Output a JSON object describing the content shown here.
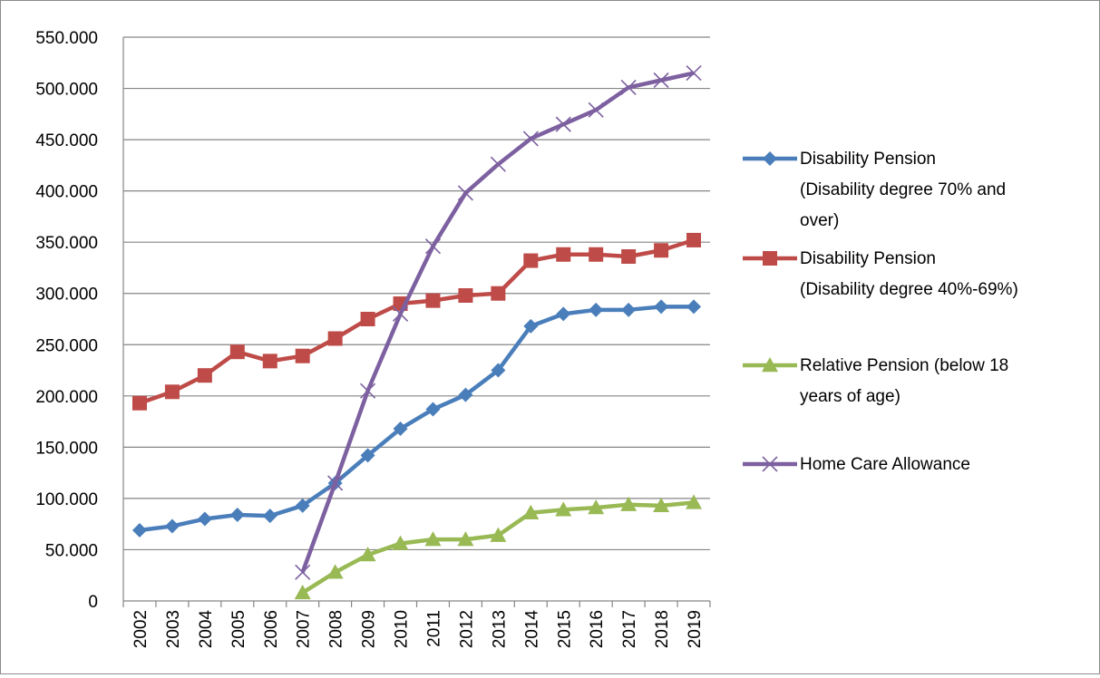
{
  "chart_data": {
    "type": "line",
    "categories": [
      "2002",
      "2003",
      "2004",
      "2005",
      "2006",
      "2007",
      "2008",
      "2009",
      "2010",
      "2011",
      "2012",
      "2013",
      "2014",
      "2015",
      "2016",
      "2017",
      "2018",
      "2019"
    ],
    "y_ticks": [
      "0",
      "50.000",
      "100.000",
      "150.000",
      "200.000",
      "250.000",
      "300.000",
      "350.000",
      "400.000",
      "450.000",
      "500.000",
      "550.000"
    ],
    "ylim": [
      0,
      550000
    ],
    "grid": "horizontal",
    "legend_position": "right",
    "series": [
      {
        "name_lines": [
          "Disability Pension",
          "(Disability degree 70% and",
          "over)"
        ],
        "color": "#4a7ebb",
        "marker": "diamond",
        "values": [
          69000,
          73000,
          80000,
          84000,
          83000,
          93000,
          115000,
          142000,
          168000,
          187000,
          201000,
          225000,
          268000,
          280000,
          284000,
          284000,
          287000,
          287000
        ]
      },
      {
        "name_lines": [
          "Disability Pension",
          "(Disability degree 40%-69%)"
        ],
        "color": "#be4b48",
        "marker": "square",
        "values": [
          193000,
          204000,
          220000,
          243000,
          234000,
          239000,
          256000,
          275000,
          290000,
          293000,
          298000,
          300000,
          332000,
          338000,
          338000,
          336000,
          342000,
          352000
        ]
      },
      {
        "name_lines": [
          "Relative Pension (below 18",
          "years of age)"
        ],
        "color": "#98b954",
        "marker": "triangle",
        "values": [
          null,
          null,
          null,
          null,
          null,
          8000,
          28000,
          45000,
          56000,
          60000,
          60000,
          64000,
          86000,
          89000,
          91000,
          94000,
          93000,
          96000
        ]
      },
      {
        "name_lines": [
          "Home Care Allowance"
        ],
        "color": "#7d60a0",
        "marker": "x",
        "values": [
          null,
          null,
          null,
          null,
          null,
          28000,
          115000,
          205000,
          280000,
          346000,
          398000,
          426000,
          451000,
          465000,
          479000,
          501000,
          508000,
          515000
        ]
      }
    ]
  }
}
